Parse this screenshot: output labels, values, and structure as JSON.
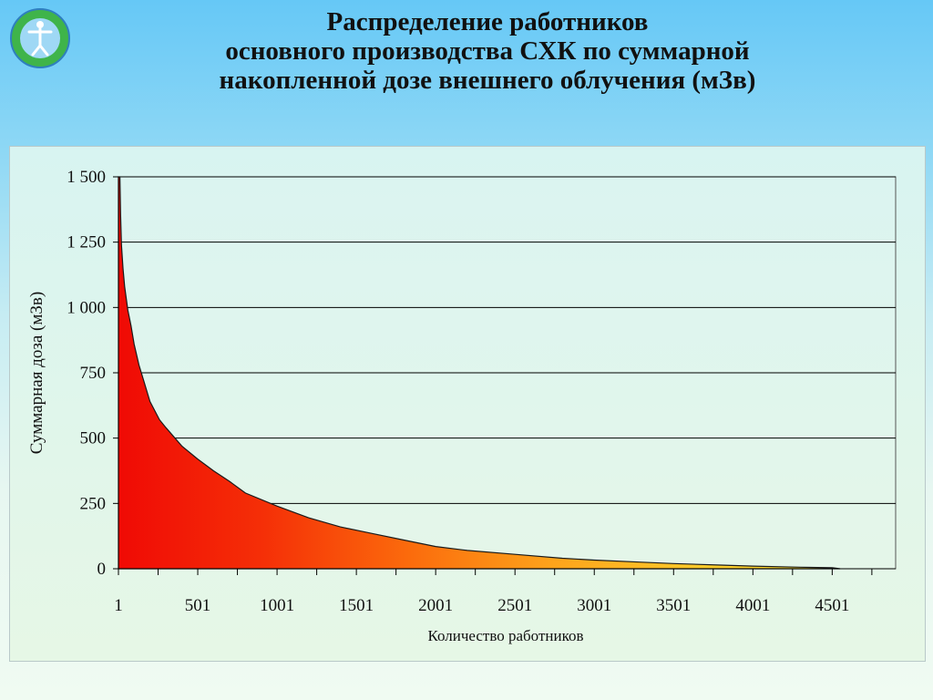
{
  "title": {
    "line1": "Распределение работников",
    "line2": "основного производства СХК по суммарной",
    "line3": "накопленной дозе внешнего облучения (мЗв)"
  },
  "chart_data": {
    "type": "area",
    "title": "Распределение работников основного производства СХК по суммарной накопленной дозе внешнего облучения (мЗв)",
    "xlabel": "Количество работников",
    "ylabel": "Суммарная доза (мЗв)",
    "xlim": [
      1,
      4901
    ],
    "ylim": [
      0,
      1500
    ],
    "x_ticks": [
      "1",
      "501",
      "1001",
      "1501",
      "2001",
      "2501",
      "3001",
      "3501",
      "4001",
      "4501"
    ],
    "y_ticks": [
      "0",
      "250",
      "500",
      "750",
      "1 000",
      "1 250",
      "1 500"
    ],
    "y_tick_values": [
      0,
      250,
      500,
      750,
      1000,
      1250,
      1500
    ],
    "grid": "horizontal",
    "series": [
      {
        "x": [
          1,
          10,
          15,
          20,
          30,
          40,
          60,
          80,
          100,
          130,
          160,
          200,
          260,
          300,
          400,
          500,
          600,
          700,
          801,
          1000,
          1200,
          1400,
          1600,
          1800,
          2001,
          2200,
          2501,
          2800,
          3001,
          3300,
          3501,
          3800,
          4001,
          4300,
          4501,
          4551
        ],
        "y": [
          1500,
          1500,
          1350,
          1240,
          1150,
          1080,
          990,
          930,
          860,
          780,
          720,
          640,
          570,
          540,
          470,
          420,
          375,
          335,
          290,
          240,
          195,
          160,
          135,
          110,
          85,
          70,
          55,
          40,
          33,
          25,
          20,
          14,
          10,
          6,
          4,
          0
        ]
      }
    ]
  }
}
